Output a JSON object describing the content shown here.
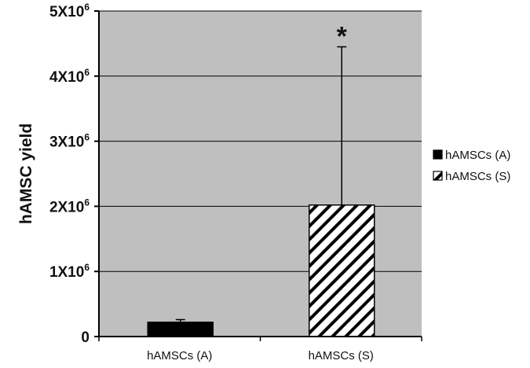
{
  "chart_data": {
    "type": "bar",
    "title": "",
    "xlabel": "",
    "ylabel": "hAMSC yield",
    "ylim": [
      0,
      5000000
    ],
    "yticks": [
      {
        "value": 0,
        "base": "0",
        "exp": ""
      },
      {
        "value": 1000000,
        "base": "1X10",
        "exp": "6"
      },
      {
        "value": 2000000,
        "base": "2X10",
        "exp": "6"
      },
      {
        "value": 3000000,
        "base": "3X10",
        "exp": "6"
      },
      {
        "value": 4000000,
        "base": "4X10",
        "exp": "6"
      },
      {
        "value": 5000000,
        "base": "5X10",
        "exp": "6"
      }
    ],
    "categories": [
      "hAMSCs (A)",
      "hAMSCs (S)"
    ],
    "values": [
      220000,
      2020000
    ],
    "error_upper": [
      40000,
      2430000
    ],
    "fills": [
      "solid-black",
      "diagonal-hatch"
    ],
    "annotations": [
      {
        "category_index": 1,
        "text": "*"
      }
    ],
    "grid": true,
    "plot_background": "#bfbfbf",
    "legend": {
      "placement": "right",
      "entries": [
        {
          "label": "hAMSCs (A)",
          "fill": "solid-black"
        },
        {
          "label": "hAMSCs (S)",
          "fill": "diagonal-hatch"
        }
      ]
    }
  }
}
